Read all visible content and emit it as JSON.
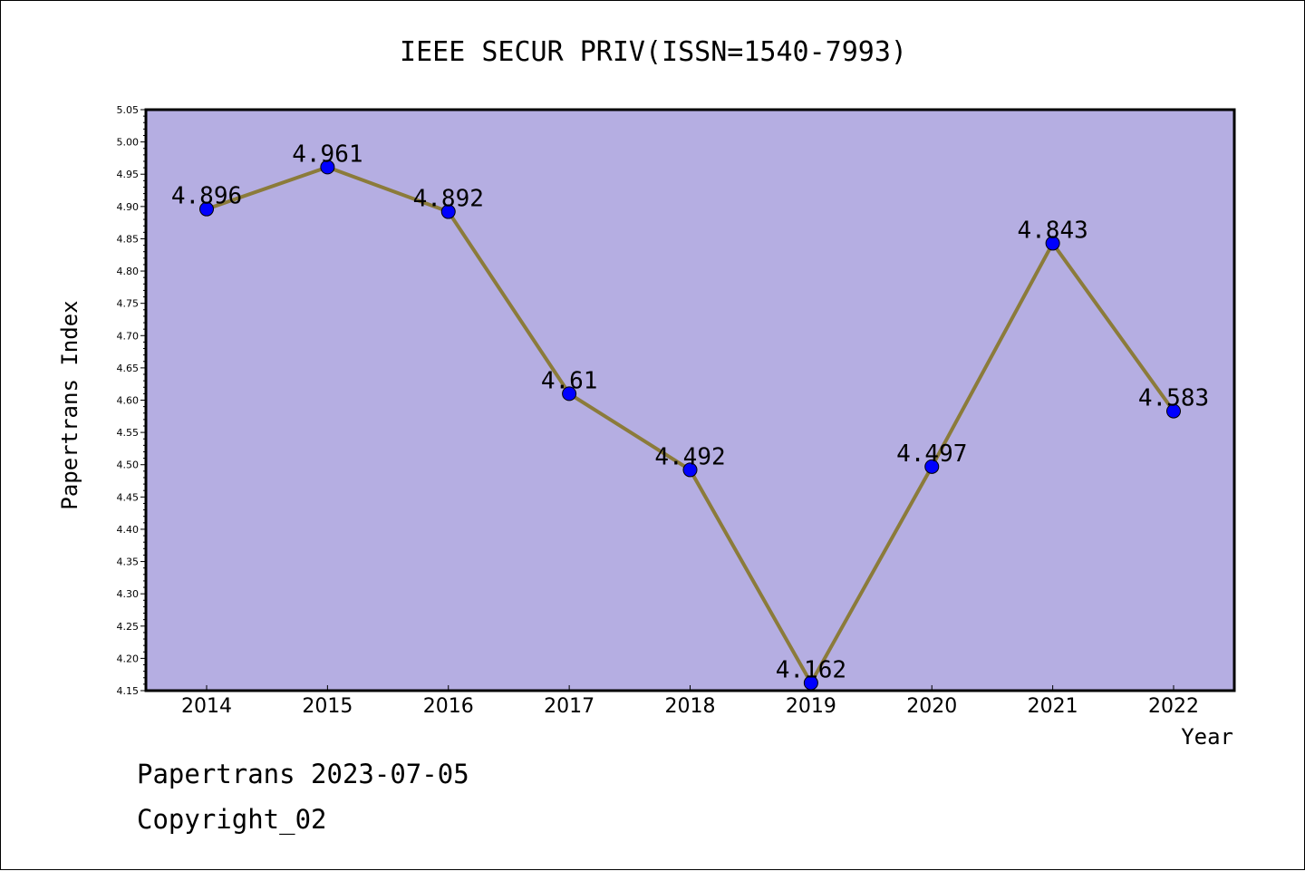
{
  "chart_data": {
    "type": "line",
    "title": "IEEE SECUR PRIV(ISSN=1540-7993)",
    "xlabel": "Year",
    "ylabel": "Papertrans Index",
    "categories": [
      "2014",
      "2015",
      "2016",
      "2017",
      "2018",
      "2019",
      "2020",
      "2021",
      "2022"
    ],
    "values": [
      4.896,
      4.961,
      4.892,
      4.61,
      4.492,
      4.162,
      4.497,
      4.843,
      4.583
    ],
    "data_labels": [
      "4.896",
      "4.961",
      "4.892",
      "4.61",
      "4.492",
      "4.162",
      "4.497",
      "4.843",
      "4.583"
    ],
    "ylim": [
      4.15,
      5.05
    ],
    "yticks": [
      "4.15",
      "4.20",
      "4.25",
      "4.30",
      "4.35",
      "4.40",
      "4.45",
      "4.50",
      "4.55",
      "4.60",
      "4.65",
      "4.70",
      "4.75",
      "4.80",
      "4.85",
      "4.90",
      "4.95",
      "5.00",
      "5.05"
    ],
    "grid": false,
    "legend": "none",
    "colors": {
      "plot_background": "#b5aee2",
      "line": "#8b7b3a",
      "marker": "#0000ff"
    }
  },
  "footer": {
    "line1": "Papertrans 2023-07-05",
    "line2": "Copyright_02"
  }
}
